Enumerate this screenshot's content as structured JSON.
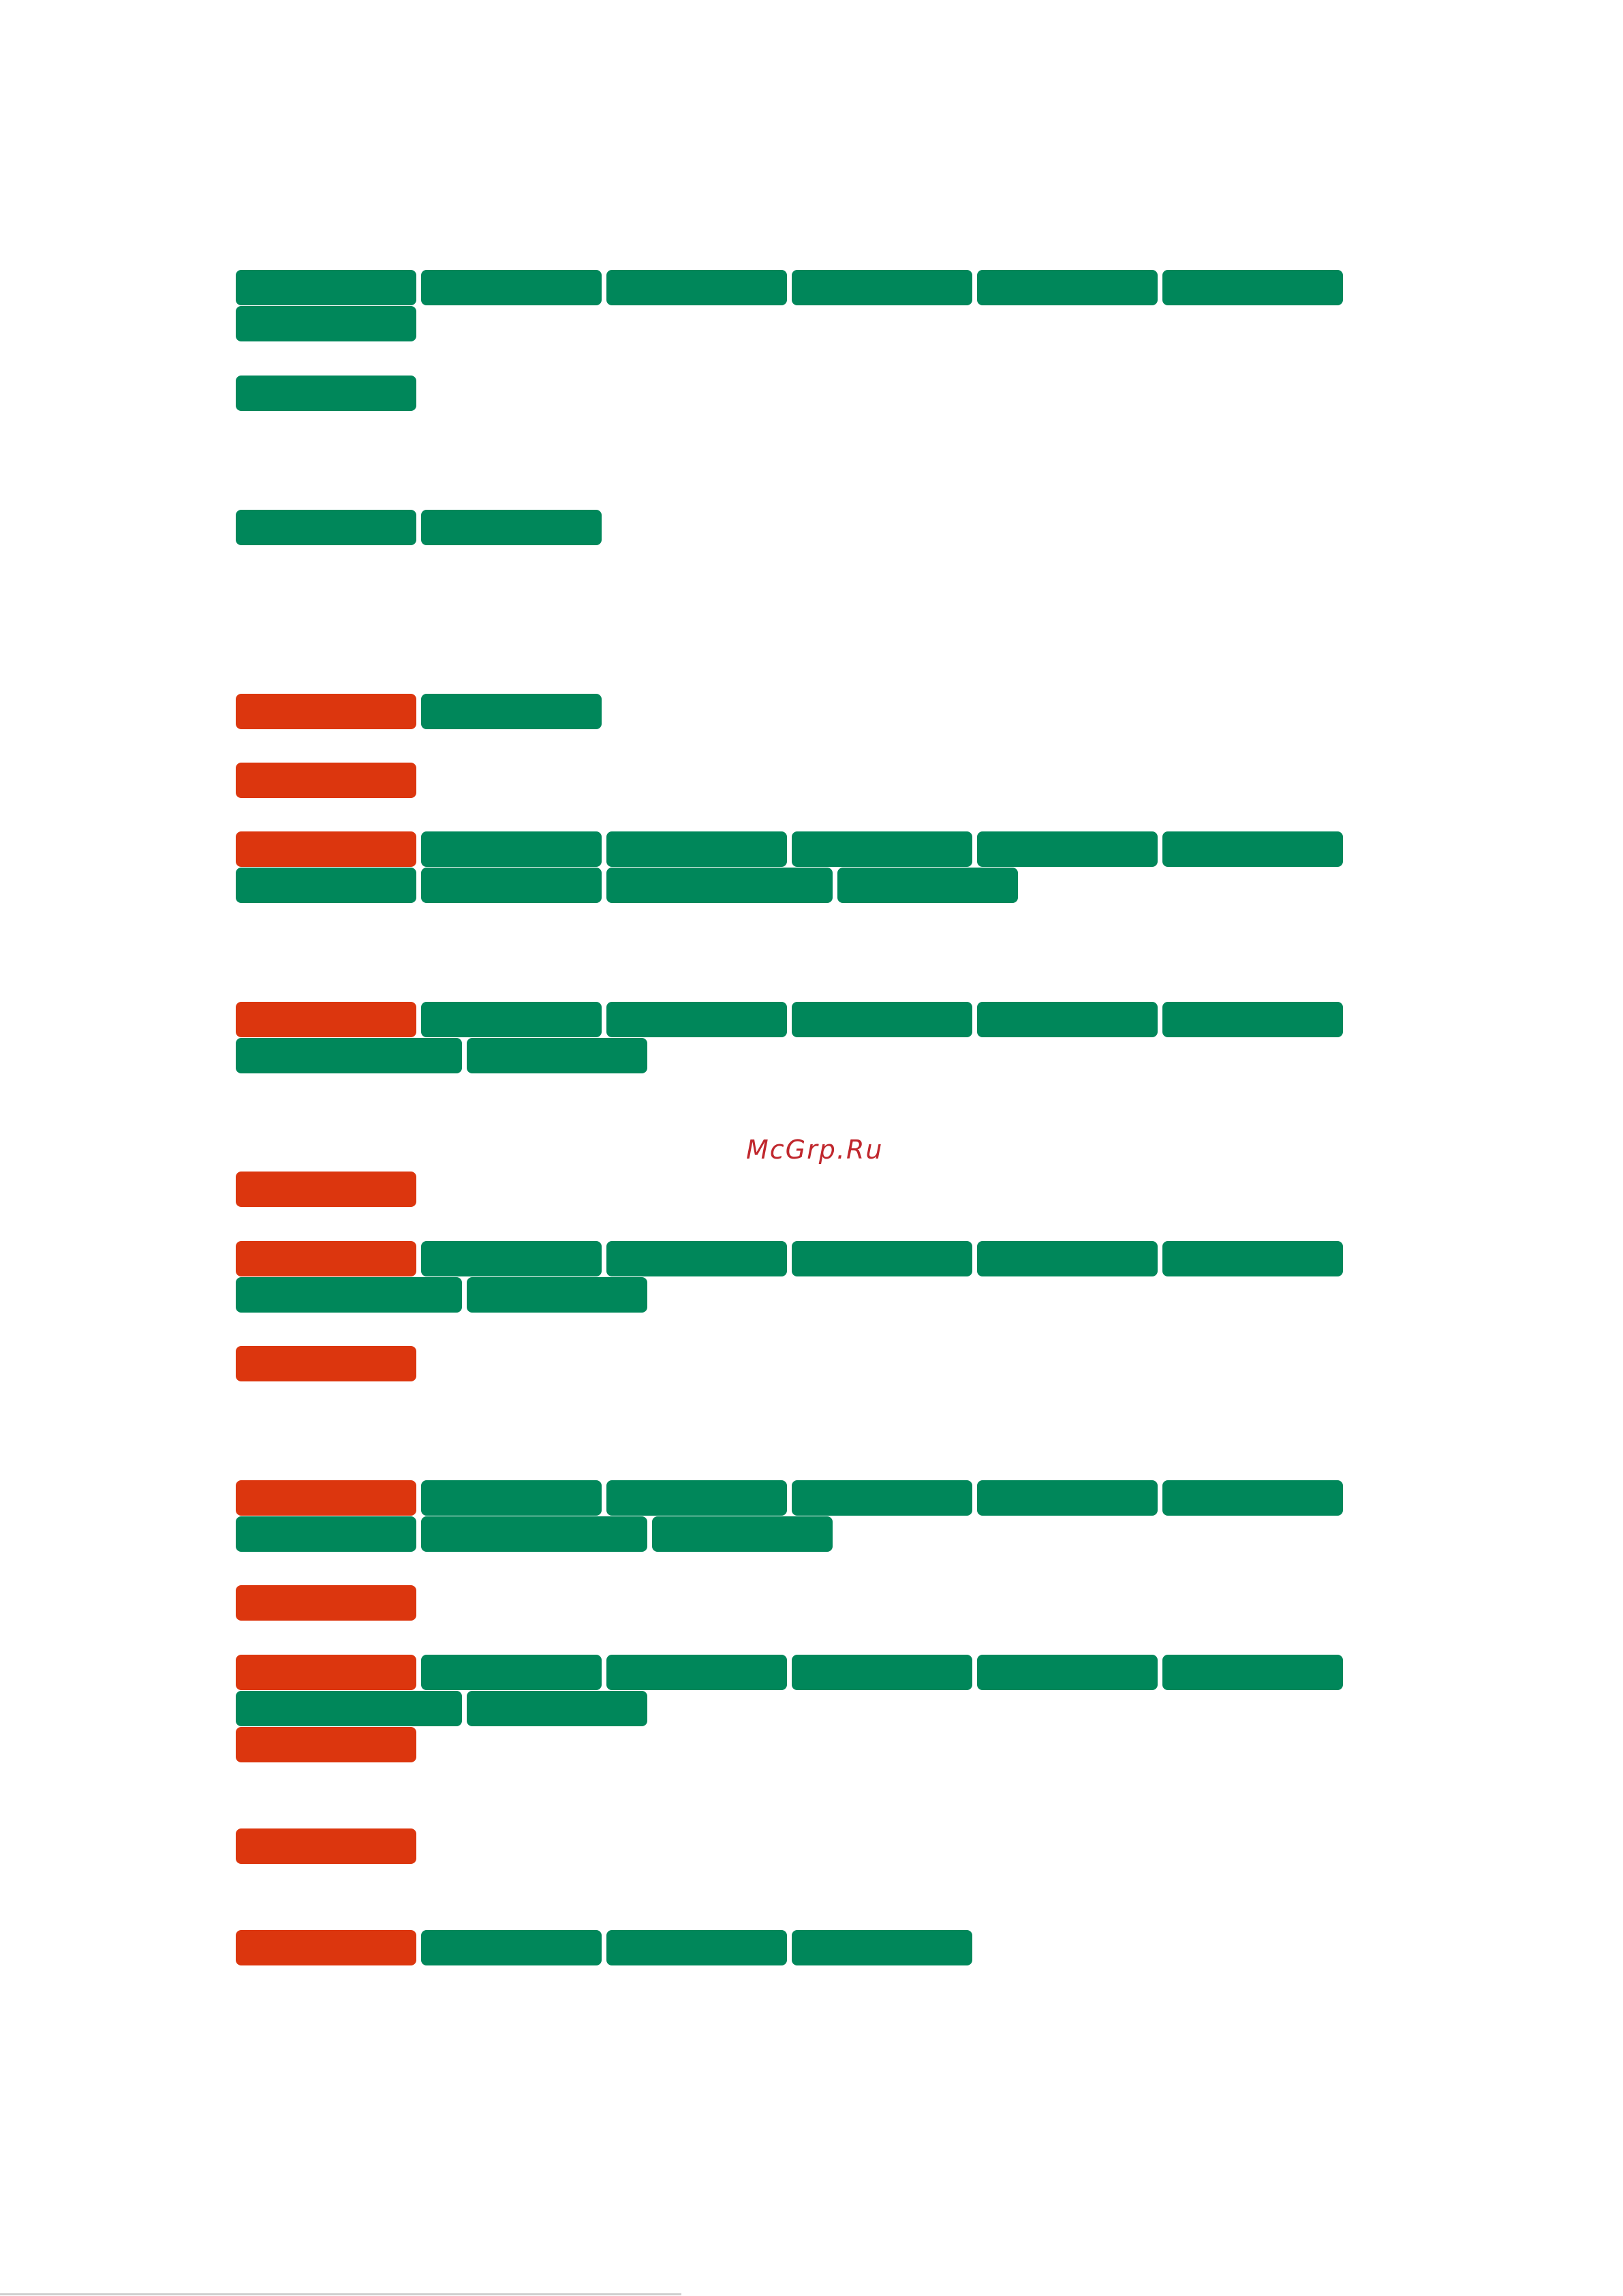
{
  "colors": {
    "green": "#00875a",
    "red": "#dc360e",
    "watermark": "#c0272d",
    "background": "#ffffff"
  },
  "watermark": {
    "text": "McGrp.Ru"
  },
  "rows": [
    {
      "tags": [
        "green",
        "green",
        "green",
        "green",
        "green",
        "green"
      ]
    },
    {
      "tags": [
        "green"
      ]
    },
    {
      "tags": [
        "green"
      ]
    },
    {
      "tags": [
        "green",
        "green"
      ]
    },
    {
      "tags": [
        "red",
        "green"
      ]
    },
    {
      "tags": [
        "red"
      ]
    },
    {
      "tags": [
        "red",
        "green",
        "green",
        "green",
        "green",
        "green"
      ]
    },
    {
      "tags": [
        "green",
        "green",
        "green",
        "green"
      ]
    },
    {
      "tags": [
        "red",
        "green",
        "green",
        "green",
        "green",
        "green"
      ]
    },
    {
      "tags": [
        "green",
        "green"
      ]
    },
    {
      "tags": [
        "red"
      ]
    },
    {
      "tags": [
        "red",
        "green",
        "green",
        "green",
        "green",
        "green"
      ]
    },
    {
      "tags": [
        "green",
        "green"
      ]
    },
    {
      "tags": [
        "red"
      ]
    },
    {
      "tags": [
        "red",
        "green",
        "green",
        "green",
        "green",
        "green"
      ]
    },
    {
      "tags": [
        "green",
        "green",
        "green"
      ]
    },
    {
      "tags": [
        "red"
      ]
    },
    {
      "tags": [
        "red",
        "green",
        "green",
        "green",
        "green",
        "green"
      ]
    },
    {
      "tags": [
        "green",
        "green"
      ]
    },
    {
      "tags": [
        "red"
      ]
    },
    {
      "tags": [
        "red"
      ]
    },
    {
      "tags": [
        "red",
        "green",
        "green",
        "green"
      ]
    }
  ]
}
